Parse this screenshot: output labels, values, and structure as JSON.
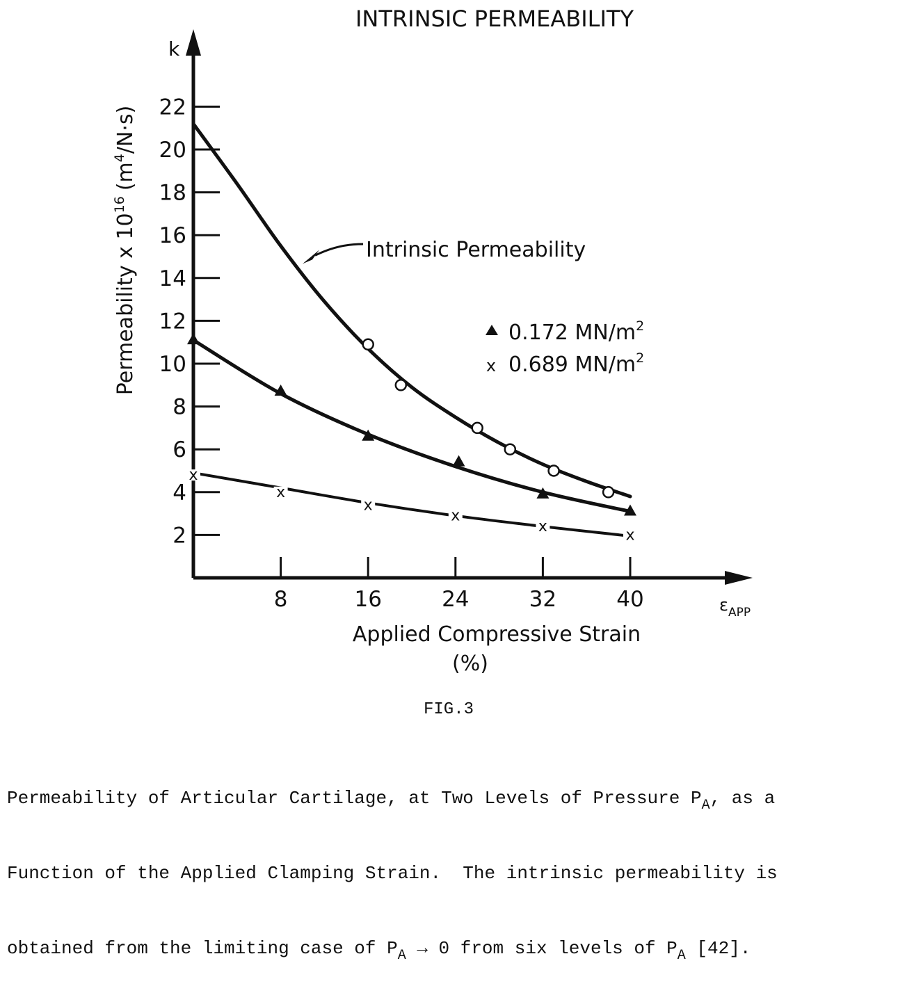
{
  "chart_data": {
    "type": "line",
    "title": "INTRINSIC PERMEABILITY",
    "ylabel": "Permeability x 10",
    "ylabel_exp": "16",
    "ylabel_unit": "(m",
    "ylabel_unit_exp": "4",
    "ylabel_unit_tail": "/N·s)",
    "ylabel_symbol": "k",
    "xlabel_line1": "Applied Compressive Strain",
    "xlabel_line2": "(%)",
    "xlabel_symbol": "ε",
    "xlabel_symbol_sub": "APP",
    "xlim": [
      0,
      40
    ],
    "ylim": [
      0,
      23
    ],
    "xticks": [
      8,
      16,
      24,
      32,
      40
    ],
    "yticks": [
      2,
      4,
      6,
      8,
      10,
      12,
      14,
      16,
      18,
      20,
      22
    ],
    "grid": false,
    "legend": "right",
    "series": [
      {
        "name": "0.172 MN/m²",
        "label_text": "0.172 MN/m",
        "label_sup": "2",
        "marker": "triangle",
        "points": [
          [
            0,
            11.1
          ],
          [
            8,
            8.7
          ],
          [
            16,
            6.6
          ],
          [
            24.3,
            5.4
          ],
          [
            32,
            3.9
          ],
          [
            40,
            3.1
          ]
        ],
        "curve": [
          [
            0,
            11.1
          ],
          [
            8,
            8.6
          ],
          [
            16,
            6.7
          ],
          [
            24,
            5.2
          ],
          [
            32,
            4.0
          ],
          [
            40,
            3.1
          ]
        ]
      },
      {
        "name": "0.689 MN/m²",
        "label_text": "0.689 MN/m",
        "label_sup": "2",
        "marker": "x",
        "points": [
          [
            0,
            4.8
          ],
          [
            8,
            4.0
          ],
          [
            16,
            3.4
          ],
          [
            24,
            2.9
          ],
          [
            32,
            2.4
          ],
          [
            40,
            2.0
          ]
        ],
        "curve": [
          [
            0,
            4.9
          ],
          [
            8,
            4.2
          ],
          [
            16,
            3.5
          ],
          [
            24,
            2.9
          ],
          [
            32,
            2.4
          ],
          [
            40,
            1.95
          ]
        ]
      },
      {
        "marker": "circle",
        "points": [
          [
            16,
            10.9
          ],
          [
            19,
            9.0
          ],
          [
            26,
            7.0
          ],
          [
            29,
            6.0
          ],
          [
            33,
            5.0
          ],
          [
            38,
            4.0
          ]
        ],
        "curve": [
          [
            0,
            21.2
          ],
          [
            4,
            18.4
          ],
          [
            8,
            15.5
          ],
          [
            12,
            12.9
          ],
          [
            16,
            10.7
          ],
          [
            20,
            8.9
          ],
          [
            24,
            7.5
          ],
          [
            28,
            6.3
          ],
          [
            32,
            5.3
          ],
          [
            36,
            4.5
          ],
          [
            40,
            3.8
          ]
        ]
      }
    ],
    "annotations": [
      {
        "text": "Intrinsic Permeability",
        "points_to": [
          10,
          14.6
        ]
      }
    ]
  },
  "figure": {
    "label": "FIG.3",
    "caption_lines": [
      {
        "pre": "Permeability of Articular Cartilage, at Two Levels of Pressure P",
        "sub": "A",
        "post": ", as a"
      },
      {
        "pre": "Function of the Applied Clamping Strain.  The intrinsic permeability is",
        "sub": "",
        "post": ""
      },
      {
        "pre": "obtained from the limiting case of P",
        "sub": "A",
        "post": " → 0 from six levels of P",
        "sub2": "A",
        "post2": " [42]."
      }
    ]
  }
}
